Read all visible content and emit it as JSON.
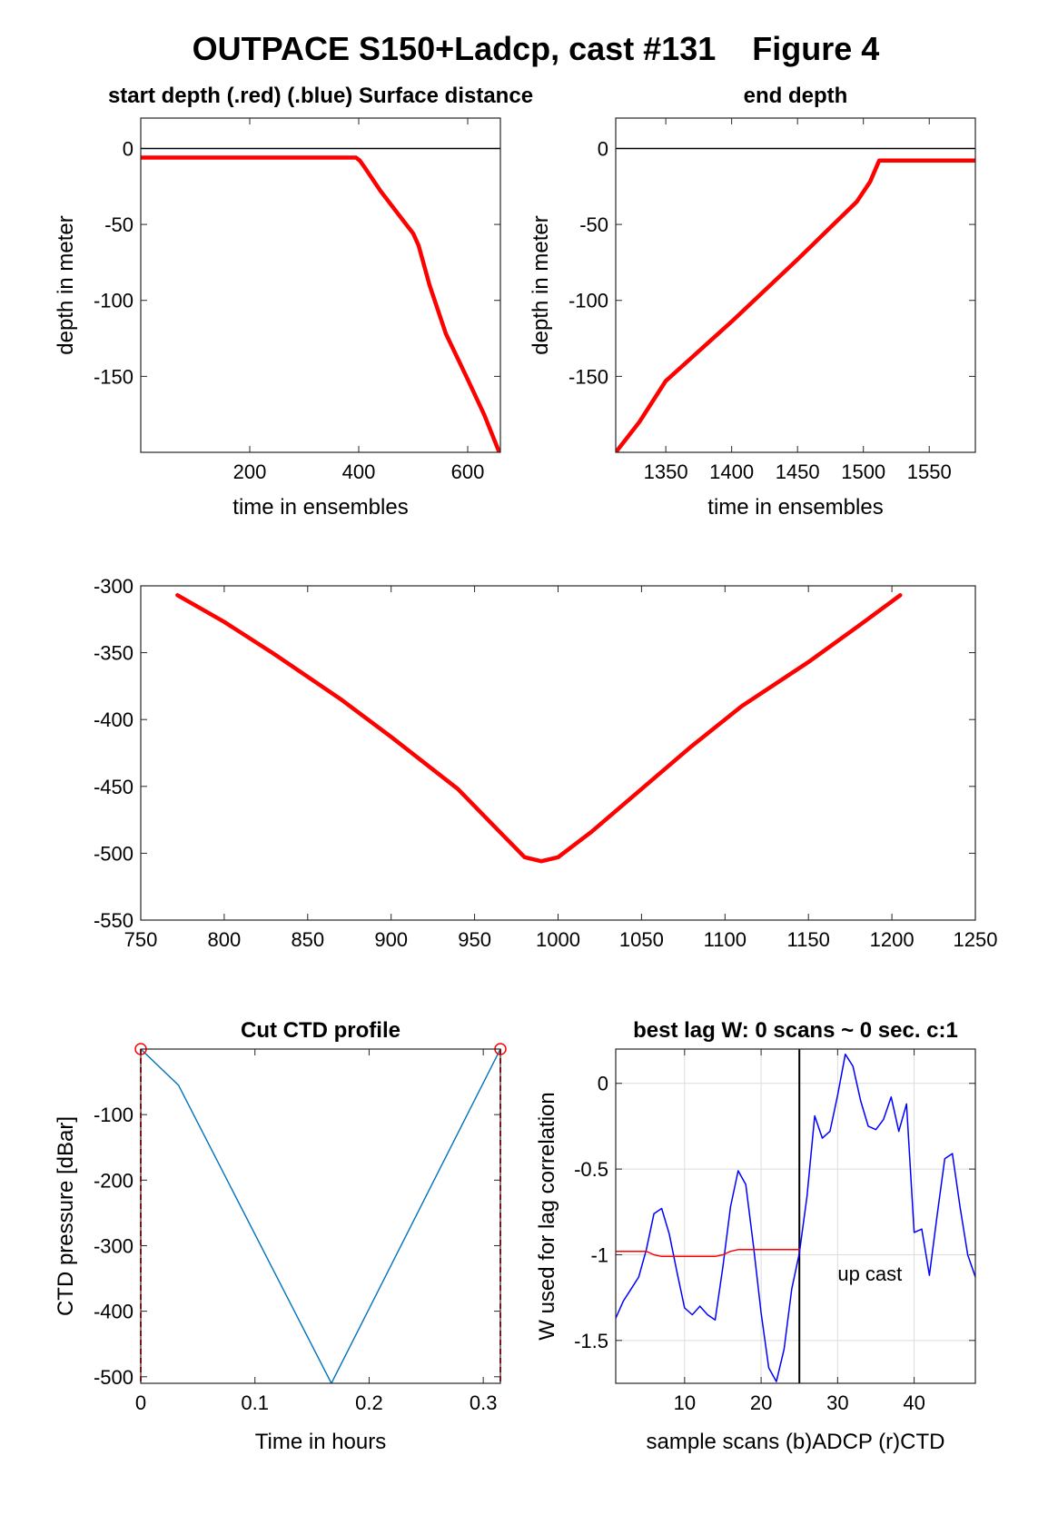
{
  "figure": {
    "title": "OUTPACE S150+Ladcp, cast #131    Figure 4"
  },
  "chart_data": [
    {
      "id": "start",
      "type": "line",
      "title": "start depth (.red) (.blue) Surface distance",
      "xlabel": "time in ensembles",
      "ylabel": "depth in meter",
      "xlim": [
        0,
        660
      ],
      "ylim": [
        -200,
        20
      ],
      "xticks": [
        200,
        400,
        600
      ],
      "yticks": [
        0,
        -50,
        -100,
        -150
      ],
      "grid": false,
      "refline_y": 0,
      "series": [
        {
          "color": "#ff0000",
          "x": [
            0,
            395,
            402,
            410,
            440,
            470,
            500,
            510,
            530,
            560,
            600,
            630,
            658
          ],
          "y": [
            -6,
            -6,
            -8,
            -12,
            -28,
            -42,
            -56,
            -64,
            -90,
            -122,
            -152,
            -175,
            -200
          ]
        }
      ]
    },
    {
      "id": "end",
      "type": "line",
      "title": "end depth",
      "xlabel": "time in ensembles",
      "ylabel": "depth in meter",
      "xlim": [
        1312,
        1585
      ],
      "ylim": [
        -200,
        20
      ],
      "xticks": [
        1350,
        1400,
        1450,
        1500,
        1550
      ],
      "yticks": [
        0,
        -50,
        -100,
        -150
      ],
      "grid": false,
      "refline_y": 0,
      "series": [
        {
          "color": "#ff0000",
          "x": [
            1312,
            1330,
            1350,
            1400,
            1450,
            1495,
            1505,
            1512,
            1540,
            1585
          ],
          "y": [
            -200,
            -180,
            -153,
            -114,
            -73,
            -35,
            -22,
            -8,
            -8,
            -8
          ]
        }
      ]
    },
    {
      "id": "middle",
      "type": "line",
      "title": "",
      "xlabel": "",
      "ylabel": "",
      "xlim": [
        750,
        1250
      ],
      "ylim": [
        -550,
        -300
      ],
      "xticks": [
        750,
        800,
        850,
        900,
        950,
        1000,
        1050,
        1100,
        1150,
        1200,
        1250
      ],
      "yticks": [
        -300,
        -350,
        -400,
        -450,
        -500,
        -550
      ],
      "grid": false,
      "series": [
        {
          "color": "#ff0000",
          "x": [
            772,
            800,
            830,
            870,
            900,
            940,
            965,
            980,
            990,
            1000,
            1020,
            1050,
            1080,
            1110,
            1150,
            1180,
            1205
          ],
          "y": [
            -307,
            -327,
            -351,
            -385,
            -413,
            -452,
            -484,
            -503,
            -506,
            -503,
            -484,
            -452,
            -420,
            -390,
            -357,
            -330,
            -307
          ]
        }
      ]
    },
    {
      "id": "ctd",
      "type": "line",
      "title": "Cut CTD profile",
      "xlabel": "Time in hours",
      "ylabel": "CTD pressure [dBar]",
      "xlim": [
        0,
        0.315
      ],
      "ylim": [
        -510,
        0
      ],
      "xticks": [
        0,
        0.1,
        0.2,
        0.3
      ],
      "xtick_labels": [
        "0",
        "0.1",
        "0.2",
        "0.3"
      ],
      "yticks": [
        -100,
        -200,
        -300,
        -400,
        -500
      ],
      "grid": false,
      "series": [
        {
          "color": "#0072bd",
          "x": [
            0,
            0.033,
            0.167,
            0.315
          ],
          "y": [
            0,
            -55,
            -510,
            0
          ]
        }
      ],
      "cut_markers": {
        "color": "#ff0000",
        "x": [
          0,
          0.315
        ]
      }
    },
    {
      "id": "lag",
      "type": "line",
      "title": "best lag W: 0 scans ~ 0 sec.  c:1",
      "xlabel": "sample scans (b)ADCP (r)CTD",
      "ylabel": "W used for lag correlation",
      "xlim": [
        1,
        48
      ],
      "ylim": [
        -1.75,
        0.2
      ],
      "xticks": [
        10,
        20,
        30,
        40
      ],
      "yticks": [
        0,
        -0.5,
        -1,
        -1.5
      ],
      "ytick_labels": [
        "0",
        "-0.5",
        "-1",
        "-1.5"
      ],
      "grid": true,
      "vline_x": 25,
      "annotation": {
        "text": "up cast",
        "x": 30,
        "y": -1.15
      },
      "series": [
        {
          "color": "#0000ff",
          "x": [
            1,
            2,
            3,
            4,
            5,
            6,
            7,
            8,
            9,
            10,
            11,
            12,
            13,
            14,
            15,
            16,
            17,
            18,
            19,
            20,
            21,
            22,
            23,
            24,
            25,
            26,
            27,
            28,
            29,
            30,
            31,
            32,
            33,
            34,
            35,
            36,
            37,
            38,
            39,
            40,
            41,
            42,
            43,
            44,
            45,
            46,
            47,
            48
          ],
          "y": [
            -1.37,
            -1.27,
            -1.2,
            -1.13,
            -0.97,
            -0.76,
            -0.73,
            -0.88,
            -1.1,
            -1.31,
            -1.35,
            -1.3,
            -1.35,
            -1.38,
            -1.07,
            -0.72,
            -0.51,
            -0.59,
            -0.95,
            -1.34,
            -1.66,
            -1.74,
            -1.55,
            -1.2,
            -0.99,
            -0.66,
            -0.19,
            -0.32,
            -0.28,
            -0.07,
            0.17,
            0.1,
            -0.1,
            -0.25,
            -0.27,
            -0.21,
            -0.08,
            -0.28,
            -0.12,
            -0.87,
            -0.85,
            -1.12,
            -0.77,
            -0.44,
            -0.41,
            -0.72,
            -1.0,
            -1.13
          ]
        },
        {
          "color": "#ff0000",
          "x": [
            1,
            5,
            6,
            7,
            8,
            9,
            10,
            11,
            12,
            13,
            14,
            15,
            16,
            17,
            25
          ],
          "y": [
            -0.98,
            -0.98,
            -1.0,
            -1.01,
            -1.01,
            -1.01,
            -1.01,
            -1.01,
            -1.01,
            -1.01,
            -1.01,
            -1.0,
            -0.98,
            -0.97,
            -0.97
          ]
        }
      ]
    }
  ]
}
